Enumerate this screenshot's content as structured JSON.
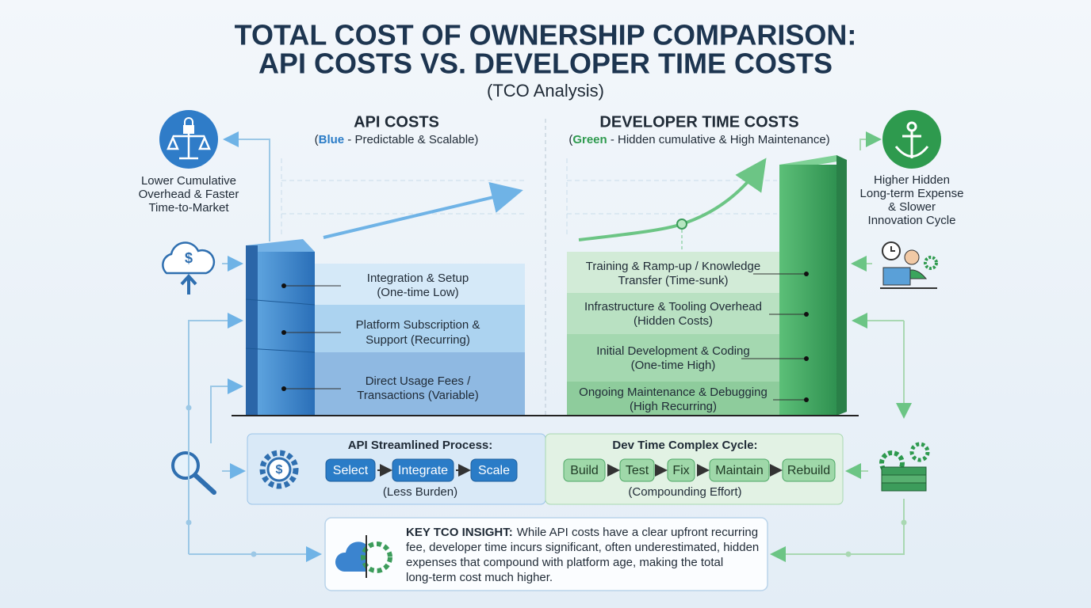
{
  "header": {
    "title_lines": [
      "TOTAL COST OF OWNERSHIP COMPARISON:",
      "API COSTS VS. DEVELOPER TIME COSTS"
    ],
    "subtitle": "(TCO Analysis)"
  },
  "api": {
    "heading": "API COSTS",
    "subheading": [
      "(",
      "Blue",
      " - Predictable & Scalable)"
    ],
    "layers": [
      [
        "Integration & Setup",
        "(One-time Low)"
      ],
      [
        "Platform Subscription &",
        "Support (Recurring)"
      ],
      [
        "Direct Usage Fees /",
        "Transactions (Variable)"
      ]
    ],
    "benefit": [
      "Lower Cumulative",
      "Overhead & Faster",
      "Time-to-Market"
    ],
    "process": {
      "title": "API Streamlined Process:",
      "steps": [
        "Select",
        "Integrate",
        "Scale"
      ],
      "note": "(Less Burden)"
    }
  },
  "dev": {
    "heading": "DEVELOPER TIME COSTS",
    "subheading": [
      "(",
      "Green",
      " - Hidden cumulative & High Maintenance)"
    ],
    "layers": [
      [
        "Training & Ramp-up / Knowledge",
        "Transfer (Time-sunk)"
      ],
      [
        "Infrastructure & Tooling Overhead",
        "(Hidden Costs)"
      ],
      [
        "Initial Development & Coding",
        "(One-time High)"
      ],
      [
        "Ongoing Maintenance & Debugging",
        "(High Recurring)"
      ]
    ],
    "drawback": [
      "Higher Hidden",
      "Long-term Expense",
      "& Slower",
      "Innovation Cycle"
    ],
    "process": {
      "title": "Dev Time Complex Cycle:",
      "steps": [
        "Build",
        "Test",
        "Fix",
        "Maintain",
        "Rebuild"
      ],
      "note": "(Compounding Effort)"
    }
  },
  "insight": {
    "label": "KEY TCO INSIGHT:",
    "lines": [
      "While API costs have a clear upfront recurring",
      "fee, developer time incurs significant, often underestimated, hidden",
      "expenses that compound with platform age, making the total",
      "long-term cost much higher."
    ]
  }
}
